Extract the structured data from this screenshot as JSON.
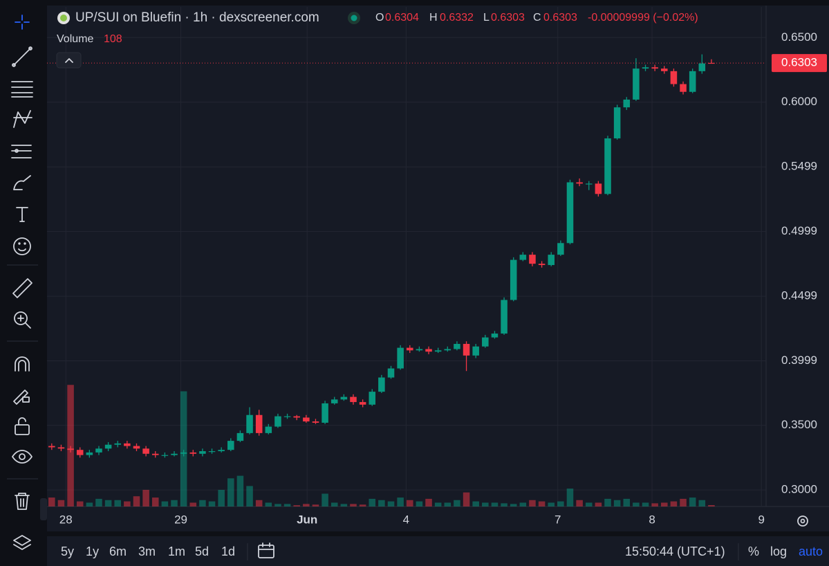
{
  "header": {
    "title": "UP/SUI on Bluefin · 1h · dexscreener.com",
    "o": "O",
    "h": "H",
    "l": "L",
    "c": "C",
    "change": "-0.00009999 (−0.02%)",
    "volume_label": "Volume"
  },
  "bottom": {
    "ranges": [
      "5y",
      "1y",
      "6m",
      "3m",
      "1m",
      "5d",
      "1d"
    ],
    "time": "15:50:44 (UTC+1)",
    "options": [
      "%",
      "log",
      "auto"
    ]
  },
  "chart_data": {
    "type": "candlestick",
    "up_color": "#089981",
    "down_color": "#f23645",
    "ylim": [
      0.2872,
      0.6737
    ],
    "yticks": [
      {
        "value": 0.3,
        "label": "0.3000"
      },
      {
        "value": 0.35,
        "label": "0.3500"
      },
      0.3999,
      0.4499,
      0.4999,
      0.5499,
      {
        "value": 0.6,
        "label": "0.6000"
      },
      {
        "value": 0.65,
        "label": "0.6500"
      }
    ],
    "xlim": [
      -0.5,
      75.8
    ],
    "xticks": [
      {
        "value": 1.5,
        "label": "28"
      },
      {
        "value": 13.7,
        "label": "29"
      },
      {
        "value": 27.1,
        "label": "Jun"
      },
      {
        "value": 37.6,
        "label": "4"
      },
      {
        "value": 53.7,
        "label": "7"
      },
      {
        "value": 63.7,
        "label": "8"
      },
      {
        "value": 75.3,
        "label": "9"
      }
    ],
    "volume_lim": [
      0,
      10000
    ],
    "grid": true,
    "open": [
      0.334,
      0.333,
      0.332,
      0.331,
      0.327,
      0.329,
      0.332,
      0.335,
      0.336,
      0.334,
      0.332,
      0.328,
      0.327,
      0.327,
      0.328,
      0.329,
      0.328,
      0.33,
      0.33,
      0.331,
      0.338,
      0.344,
      0.358,
      0.344,
      0.349,
      0.357,
      0.357,
      0.356,
      0.353,
      0.352,
      0.367,
      0.37,
      0.372,
      0.368,
      0.366,
      0.376,
      0.387,
      0.394,
      0.41,
      0.408,
      0.409,
      0.407,
      0.408,
      0.409,
      0.413,
      0.404,
      0.411,
      0.418,
      0.421,
      0.447,
      0.478,
      0.482,
      0.475,
      0.474,
      0.482,
      0.491,
      0.538,
      0.537,
      0.537,
      0.529,
      0.572,
      0.596,
      0.602,
      0.626,
      0.627,
      0.626,
      0.624,
      0.614,
      0.608,
      0.624,
      0.6304
    ],
    "high": [
      0.336,
      0.335,
      0.334,
      0.333,
      0.331,
      0.334,
      0.337,
      0.338,
      0.338,
      0.336,
      0.334,
      0.33,
      0.329,
      0.33,
      0.331,
      0.331,
      0.332,
      0.332,
      0.333,
      0.34,
      0.346,
      0.364,
      0.362,
      0.351,
      0.359,
      0.359,
      0.358,
      0.358,
      0.355,
      0.369,
      0.372,
      0.374,
      0.374,
      0.37,
      0.378,
      0.389,
      0.396,
      0.412,
      0.412,
      0.411,
      0.411,
      0.41,
      0.411,
      0.415,
      0.415,
      0.413,
      0.42,
      0.423,
      0.449,
      0.48,
      0.484,
      0.484,
      0.477,
      0.484,
      0.493,
      0.54,
      0.541,
      0.539,
      0.539,
      0.574,
      0.598,
      0.604,
      0.634,
      0.629,
      0.629,
      0.628,
      0.626,
      0.616,
      0.626,
      0.637,
      0.6332
    ],
    "low": [
      0.331,
      0.33,
      0.329,
      0.325,
      0.325,
      0.327,
      0.33,
      0.333,
      0.332,
      0.33,
      0.326,
      0.325,
      0.325,
      0.326,
      0.326,
      0.326,
      0.326,
      0.328,
      0.329,
      0.33,
      0.337,
      0.343,
      0.342,
      0.343,
      0.348,
      0.355,
      0.354,
      0.352,
      0.351,
      0.351,
      0.366,
      0.369,
      0.366,
      0.364,
      0.365,
      0.375,
      0.386,
      0.393,
      0.406,
      0.407,
      0.405,
      0.406,
      0.407,
      0.408,
      0.392,
      0.402,
      0.41,
      0.417,
      0.42,
      0.446,
      0.477,
      0.473,
      0.472,
      0.473,
      0.481,
      0.49,
      0.535,
      0.532,
      0.527,
      0.528,
      0.571,
      0.594,
      0.601,
      0.624,
      0.624,
      0.622,
      0.612,
      0.606,
      0.607,
      0.622,
      0.6303
    ],
    "close": [
      0.333,
      0.332,
      0.331,
      0.327,
      0.329,
      0.332,
      0.335,
      0.336,
      0.334,
      0.332,
      0.328,
      0.327,
      0.327,
      0.328,
      0.329,
      0.328,
      0.33,
      0.33,
      0.331,
      0.338,
      0.344,
      0.358,
      0.344,
      0.349,
      0.357,
      0.357,
      0.356,
      0.353,
      0.352,
      0.367,
      0.37,
      0.372,
      0.368,
      0.366,
      0.376,
      0.387,
      0.394,
      0.41,
      0.408,
      0.409,
      0.407,
      0.408,
      0.409,
      0.413,
      0.404,
      0.411,
      0.418,
      0.421,
      0.447,
      0.478,
      0.482,
      0.475,
      0.474,
      0.482,
      0.491,
      0.538,
      0.537,
      0.537,
      0.529,
      0.572,
      0.596,
      0.602,
      0.626,
      0.627,
      0.626,
      0.624,
      0.614,
      0.608,
      0.624,
      0.63,
      0.6303
    ],
    "volume": [
      700,
      500,
      9500,
      400,
      300,
      600,
      500,
      500,
      400,
      800,
      1300,
      700,
      400,
      500,
      9000,
      300,
      500,
      400,
      1300,
      2200,
      2400,
      1600,
      500,
      300,
      200,
      200,
      100,
      200,
      150,
      1000,
      300,
      200,
      200,
      150,
      600,
      500,
      400,
      700,
      500,
      400,
      600,
      300,
      300,
      500,
      1100,
      400,
      300,
      300,
      250,
      200,
      300,
      500,
      400,
      300,
      400,
      1400,
      500,
      300,
      300,
      600,
      500,
      600,
      300,
      300,
      250,
      300,
      400,
      600,
      700,
      500,
      108
    ]
  }
}
